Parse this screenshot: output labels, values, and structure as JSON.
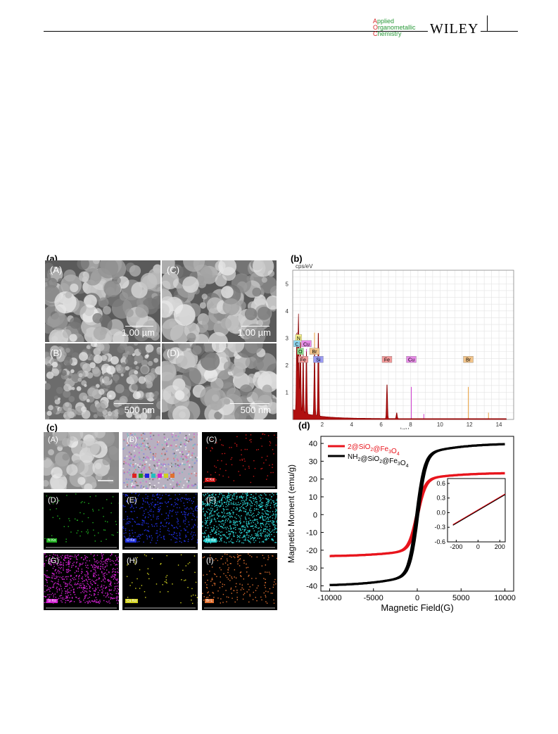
{
  "header": {
    "journal_lines": [
      {
        "first": "A",
        "rest": "pplied"
      },
      {
        "first": "O",
        "rest": "rganometallic"
      },
      {
        "first": "C",
        "rest": "hemistry"
      }
    ],
    "publisher": "WILEY"
  },
  "panel_a": {
    "label": "(a)",
    "images": [
      {
        "id": "A",
        "label": "(A)",
        "scale": "1.00 µm"
      },
      {
        "id": "C",
        "label": "(C)",
        "scale": "1.00 µm"
      },
      {
        "id": "B",
        "label": "(B)",
        "scale": "500 nm"
      },
      {
        "id": "D",
        "label": "(D)",
        "scale": "500 nm"
      }
    ]
  },
  "panel_b": {
    "label": "(b)",
    "chart_data": {
      "type": "line",
      "ylabel": "cps/eV",
      "xlabel": "keV",
      "xlim": [
        0,
        15
      ],
      "ylim": [
        0,
        5.5
      ],
      "xticks": [
        "2",
        "4",
        "6",
        "8",
        "10",
        "12",
        "14"
      ],
      "yticks": [
        "1",
        "2",
        "3",
        "4",
        "5"
      ],
      "grid": true,
      "peaks": [
        {
          "x": 0.28,
          "y": 3.0
        },
        {
          "x": 0.39,
          "y": 3.6
        },
        {
          "x": 0.52,
          "y": 2.7
        },
        {
          "x": 0.71,
          "y": 2.2
        },
        {
          "x": 0.93,
          "y": 2.3
        },
        {
          "x": 1.48,
          "y": 2.5
        },
        {
          "x": 1.74,
          "y": 3.2
        },
        {
          "x": 6.4,
          "y": 1.3
        },
        {
          "x": 7.06,
          "y": 0.22
        },
        {
          "x": 8.05,
          "y": 1.1
        },
        {
          "x": 8.9,
          "y": 0.2
        },
        {
          "x": 11.92,
          "y": 1.2
        },
        {
          "x": 13.29,
          "y": 0.25
        }
      ],
      "element_labels": [
        {
          "text": "N",
          "x": 0.4,
          "y": 3.0,
          "color": "#f3ee8a"
        },
        {
          "text": "C",
          "x": 0.28,
          "y": 2.78,
          "color": "#8fd9f2"
        },
        {
          "text": "Cu",
          "x": 0.93,
          "y": 2.78,
          "color": "#e88ce8"
        },
        {
          "text": "O",
          "x": 0.52,
          "y": 2.5,
          "color": "#8ee08e"
        },
        {
          "text": "Br",
          "x": 1.48,
          "y": 2.5,
          "color": "#f2c48a"
        },
        {
          "text": "Fe",
          "x": 0.71,
          "y": 2.2,
          "color": "#f29a9a"
        },
        {
          "text": "Si",
          "x": 1.74,
          "y": 2.2,
          "color": "#9a9af2"
        },
        {
          "text": "Fe",
          "x": 6.4,
          "y": 2.2,
          "color": "#f29a9a"
        },
        {
          "text": "Cu",
          "x": 8.05,
          "y": 2.2,
          "color": "#e88ce8"
        },
        {
          "text": "Br",
          "x": 11.92,
          "y": 2.2,
          "color": "#f2c48a"
        }
      ]
    }
  },
  "panel_c": {
    "label": "(c)",
    "maps": [
      {
        "id": "A",
        "label": "(A)",
        "tag": "",
        "color": "#cccccc",
        "kind": "sem"
      },
      {
        "id": "B",
        "label": "(B)",
        "tag": "",
        "color": "#c9a7d8",
        "kind": "overlay"
      },
      {
        "id": "C",
        "label": "(C)",
        "tag": "C Kα",
        "color": "#d01818",
        "kind": "map"
      },
      {
        "id": "D",
        "label": "(D)",
        "tag": "N Kα",
        "color": "#20b020",
        "kind": "map"
      },
      {
        "id": "E",
        "label": "(E)",
        "tag": "O Kα",
        "color": "#2030e0",
        "kind": "map"
      },
      {
        "id": "F",
        "label": "(F)",
        "tag": "Fe Kα",
        "color": "#2ad0d0",
        "kind": "map"
      },
      {
        "id": "G",
        "label": "(G)",
        "tag": "Si Kα",
        "color": "#d020d0",
        "kind": "map"
      },
      {
        "id": "H",
        "label": "(H)",
        "tag": "Cu Kα",
        "color": "#d0d020",
        "kind": "map"
      },
      {
        "id": "I",
        "label": "(I)",
        "tag": "Br L",
        "color": "#e07030",
        "kind": "map"
      }
    ]
  },
  "panel_d": {
    "label": "(d)",
    "chart_data": {
      "type": "line",
      "xlabel": "Magnetic Field(G)",
      "ylabel": "Magnetic Moment (emu/g)",
      "xlim": [
        -11000,
        11000
      ],
      "ylim": [
        -43,
        44
      ],
      "xticks": [
        -10000,
        -5000,
        0,
        5000,
        10000
      ],
      "yticks": [
        -40,
        -30,
        -20,
        -10,
        0,
        10,
        20,
        30,
        40
      ],
      "legend": "top-left",
      "series": [
        {
          "name": "2@SiO2@Fe3O4",
          "legend_parts": [
            [
              "2@SiO",
              ""
            ],
            [
              "2",
              "sub"
            ],
            [
              "@Fe",
              ""
            ],
            [
              "3",
              "sub"
            ],
            [
              "O",
              ""
            ],
            [
              "4",
              "sub"
            ]
          ],
          "color": "#e8141c",
          "ms": 23.5,
          "hc": 600
        },
        {
          "name": "NH2@SiO2@Fe3O4",
          "legend_parts": [
            [
              "NH",
              ""
            ],
            [
              "2",
              "sub"
            ],
            [
              "@SiO",
              ""
            ],
            [
              "2",
              "sub"
            ],
            [
              "@Fe",
              ""
            ],
            [
              "3",
              "sub"
            ],
            [
              "O",
              ""
            ],
            [
              "4",
              "sub"
            ]
          ],
          "color": "#000000",
          "ms": 40,
          "hc": 700
        }
      ],
      "inset": {
        "xlim": [
          -280,
          250
        ],
        "ylim": [
          -0.6,
          0.7
        ],
        "xticks": [
          -200,
          0,
          200
        ],
        "yticks": [
          "0.6",
          "0.3",
          "0.0",
          "-0.3",
          "-0.6"
        ],
        "line": {
          "x0": -230,
          "y0": -0.25,
          "x1": 250,
          "y1": 0.38
        }
      }
    }
  }
}
